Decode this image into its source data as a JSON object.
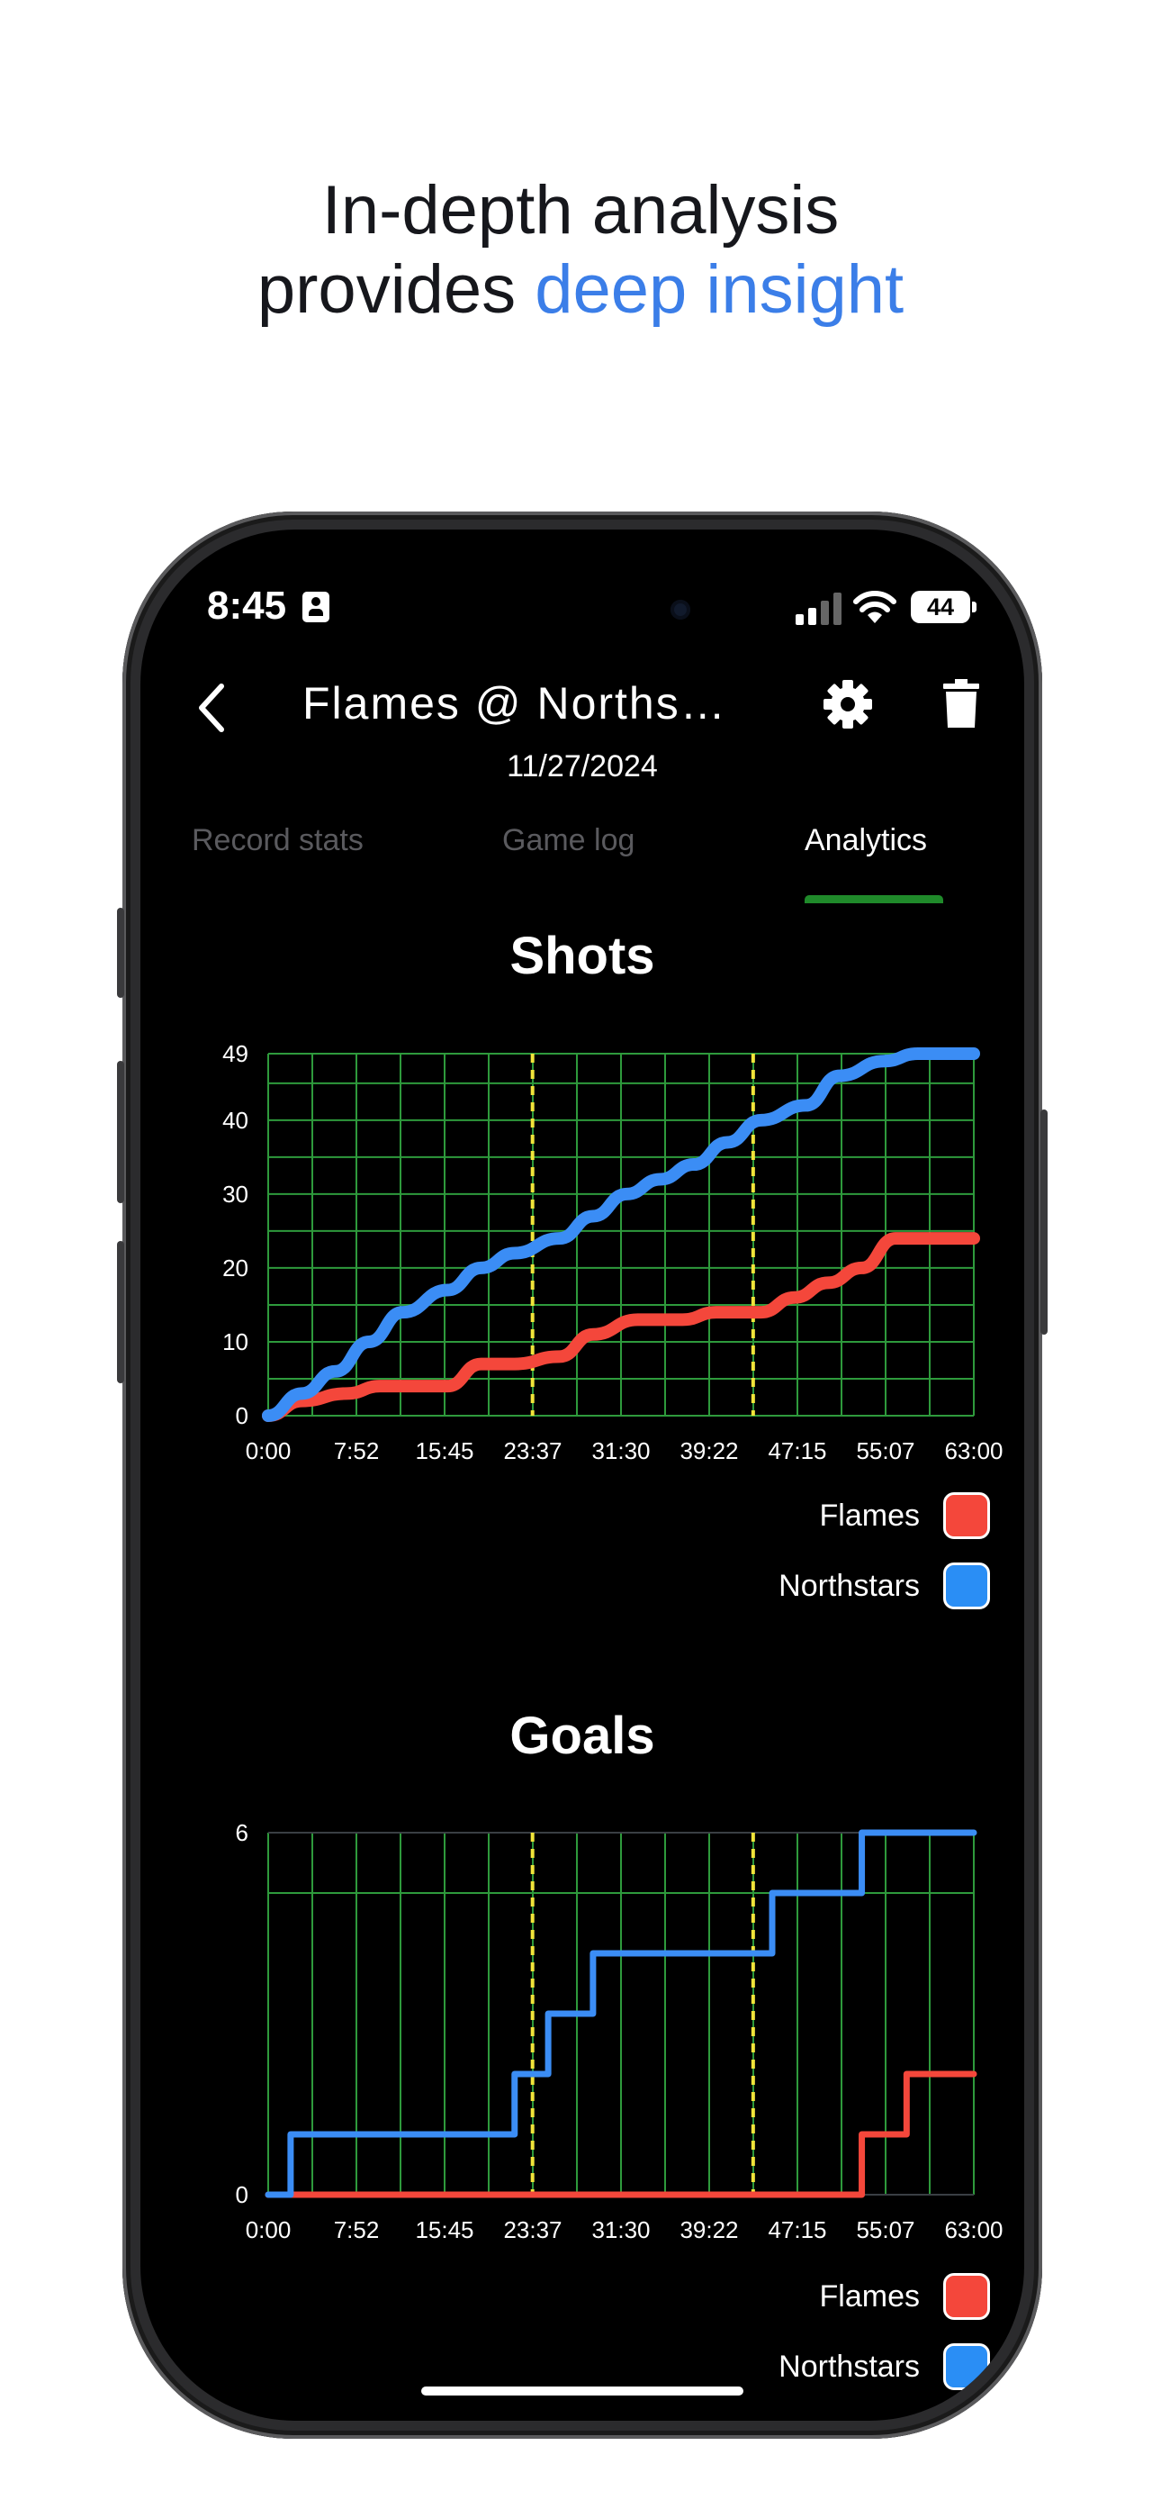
{
  "headline": {
    "line1": "In-depth analysis",
    "line2_prefix": "provides ",
    "line2_accent": "deep insight"
  },
  "status_bar": {
    "time": "8:45",
    "battery": "44"
  },
  "header": {
    "title": "Flames @ Norths…",
    "date": "11/27/2024"
  },
  "tabs": [
    {
      "label": "Record stats",
      "active": false
    },
    {
      "label": "Game log",
      "active": false
    },
    {
      "label": "Analytics",
      "active": true
    }
  ],
  "colors": {
    "accent": "#3b7ee8",
    "flames": "#f4473b",
    "northstars": "#3b8df5",
    "grid": "#2e9a3c",
    "period_line": "#f1e43a",
    "tab_indicator": "#1f8a2a"
  },
  "chart_data": [
    {
      "type": "line",
      "title": "Shots",
      "x_ticks": [
        "0:00",
        "7:52",
        "15:45",
        "23:37",
        "31:30",
        "39:22",
        "47:15",
        "55:07",
        "63:00"
      ],
      "y_ticks": [
        "0",
        "10",
        "20",
        "30",
        "40",
        "49"
      ],
      "xlim": [
        0,
        63
      ],
      "ylim": [
        0,
        49
      ],
      "period_lines": [
        23.6,
        43.3
      ],
      "legend": "bottom-right",
      "series": [
        {
          "name": "Flames",
          "color": "#f4473b",
          "points": [
            [
              0,
              0
            ],
            [
              3,
              2
            ],
            [
              7,
              3
            ],
            [
              10,
              4
            ],
            [
              13,
              4
            ],
            [
              16,
              4
            ],
            [
              19,
              7
            ],
            [
              22,
              7
            ],
            [
              26,
              8
            ],
            [
              29,
              11
            ],
            [
              33,
              13
            ],
            [
              37,
              13
            ],
            [
              40,
              14
            ],
            [
              44,
              14
            ],
            [
              47,
              16
            ],
            [
              50,
              18
            ],
            [
              53,
              20
            ],
            [
              56,
              24
            ],
            [
              60,
              24
            ],
            [
              63,
              24
            ]
          ]
        },
        {
          "name": "Northstars",
          "color": "#3b8df5",
          "points": [
            [
              0,
              0
            ],
            [
              3,
              3
            ],
            [
              6,
              6
            ],
            [
              9,
              10
            ],
            [
              12,
              14
            ],
            [
              16,
              17
            ],
            [
              19,
              20
            ],
            [
              22,
              22
            ],
            [
              26,
              24
            ],
            [
              29,
              27
            ],
            [
              32,
              30
            ],
            [
              35,
              32
            ],
            [
              38,
              34
            ],
            [
              41,
              37
            ],
            [
              44,
              40
            ],
            [
              48,
              42
            ],
            [
              51,
              46
            ],
            [
              55,
              48
            ],
            [
              58,
              49
            ],
            [
              63,
              49
            ]
          ]
        }
      ]
    },
    {
      "type": "line",
      "title": "Goals",
      "x_ticks": [
        "0:00",
        "7:52",
        "15:45",
        "23:37",
        "31:30",
        "39:22",
        "47:15",
        "55:07",
        "63:00"
      ],
      "y_ticks": [
        "0",
        "6"
      ],
      "xlim": [
        0,
        63
      ],
      "ylim": [
        0,
        6
      ],
      "period_lines": [
        23.6,
        43.3
      ],
      "legend": "bottom-right",
      "series": [
        {
          "name": "Flames",
          "color": "#f4473b",
          "points": [
            [
              0,
              0
            ],
            [
              53,
              0
            ],
            [
              53,
              1
            ],
            [
              57,
              1
            ],
            [
              57,
              2
            ],
            [
              63,
              2
            ]
          ]
        },
        {
          "name": "Northstars",
          "color": "#3b8df5",
          "points": [
            [
              0,
              0
            ],
            [
              2,
              0
            ],
            [
              2,
              1
            ],
            [
              22,
              1
            ],
            [
              22,
              2
            ],
            [
              25,
              2
            ],
            [
              25,
              3
            ],
            [
              29,
              3
            ],
            [
              29,
              4
            ],
            [
              45,
              4
            ],
            [
              45,
              5
            ],
            [
              53,
              5
            ],
            [
              53,
              6
            ],
            [
              63,
              6
            ]
          ]
        }
      ]
    }
  ]
}
